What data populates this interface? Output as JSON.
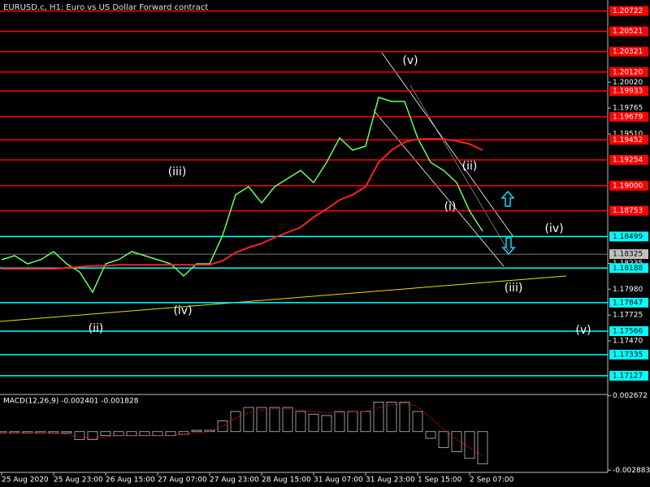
{
  "header": {
    "title": "EURUSD.c, H1:  Euro vs US Dollar Forward contract"
  },
  "chart_data": [
    {
      "type": "line",
      "categories": [
        "25 Aug 2020",
        null,
        null,
        null,
        "25 Aug 23:00",
        null,
        null,
        null,
        "26 Aug 15:00",
        null,
        null,
        null,
        "27 Aug 07:00",
        null,
        null,
        null,
        "27 Aug 23:00",
        null,
        null,
        null,
        "28 Aug 15:00",
        null,
        null,
        null,
        "31 Aug 07:00",
        null,
        null,
        null,
        "31 Aug 23:00",
        null,
        null,
        null,
        "1 Sep 15:00",
        null,
        null,
        null,
        "2 Sep 07:00",
        null
      ],
      "series": [
        {
          "color": "#66ff66",
          "values": [
            1.1827,
            1.1831,
            1.1823,
            1.1827,
            1.1835,
            1.1823,
            1.1815,
            1.1795,
            1.1823,
            1.1827,
            1.1835,
            1.1831,
            1.1827,
            1.1823,
            1.1811,
            1.1823,
            1.1823,
            1.1851,
            1.1891,
            1.1899,
            1.1883,
            1.1899,
            1.1907,
            1.1915,
            1.1903,
            1.1923,
            1.1947,
            1.1935,
            1.1939,
            1.1987,
            1.1983,
            1.1983,
            1.1947,
            1.1923,
            1.1915,
            1.1903,
            1.1875,
            1.1855
          ]
        },
        {
          "color": "#ff2020",
          "values": [
            1.1818,
            1.1818,
            1.1818,
            1.1818,
            1.1818,
            1.1819,
            1.182,
            1.1821,
            1.1821,
            1.1822,
            1.1822,
            1.1822,
            1.1822,
            1.1822,
            1.1822,
            1.1822,
            1.1822,
            1.1826,
            1.1834,
            1.1839,
            1.1843,
            1.1849,
            1.1854,
            1.1859,
            1.1869,
            1.1877,
            1.1886,
            1.1891,
            1.1899,
            1.1923,
            1.1935,
            1.1943,
            1.1946,
            1.1946,
            1.1946,
            1.1944,
            1.1941,
            1.1935
          ]
        }
      ],
      "ylim": [
        1.1695,
        1.2083
      ],
      "yticks": [
        {
          "value": 1.2002,
          "label": "1.20020"
        },
        1.19765,
        {
          "value": 1.1951,
          "label": "1.19510"
        },
        1.18235,
        {
          "value": 1.1798,
          "label": "1.17980"
        },
        1.17725,
        {
          "value": 1.1747,
          "label": "1.17470"
        }
      ],
      "resistance_levels": {
        "color": "#ff0000",
        "values": [
          1.20722,
          1.20521,
          1.20321,
          {
            "value": 1.2012,
            "label": "1.20120"
          },
          1.19933,
          1.19679,
          1.19452,
          1.19254,
          {
            "value": 1.19,
            "label": "1.19000"
          },
          1.18753
        ]
      },
      "support_levels": {
        "color": "#00ffff",
        "values": [
          1.18499,
          1.18188,
          1.17847,
          1.17566,
          1.17335,
          1.17127
        ]
      },
      "current_price": 1.18325,
      "annotations": [
        "(v)",
        "(iii)",
        "(ii)",
        "(i)",
        "(iv)",
        "(iii)",
        "(iv)",
        "(ii)",
        "(v)"
      ]
    },
    {
      "type": "bar",
      "title": "MACD(12,26,9) -0.002401 -0.001828",
      "series": [
        {
          "color": "#c0c0c0",
          "values": [
            -0.0001,
            -0.0001,
            -0.0001,
            -0.0001,
            -0.0001,
            -0.0001,
            -0.0006,
            -0.0006,
            -0.0003,
            -0.0003,
            -0.0003,
            -0.0003,
            -0.0003,
            -0.0003,
            -0.0002,
            0.0001,
            0.0001,
            0.0008,
            0.0015,
            0.0018,
            0.0018,
            0.0018,
            0.0018,
            0.0015,
            0.0013,
            0.0012,
            0.0015,
            0.0015,
            0.0015,
            0.0022,
            0.0022,
            0.0022,
            0.0015,
            -0.0005,
            -0.0012,
            -0.0015,
            -0.002,
            -0.0024
          ]
        },
        {
          "color": "#ff0000",
          "values": [
            -0.0001,
            -0.0001,
            -0.0001,
            -0.0001,
            -0.0001,
            -0.0002,
            -0.0004,
            -0.0005,
            -0.0004,
            -0.0003,
            -0.0003,
            -0.0003,
            -0.0003,
            -0.0003,
            -0.0002,
            -0.0001,
            0,
            0.0004,
            0.001,
            0.0014,
            0.0016,
            0.0017,
            0.0017,
            0.0016,
            0.0015,
            0.0014,
            0.0014,
            0.0015,
            0.0015,
            0.0018,
            0.002,
            0.0021,
            0.0019,
            0.001,
            0.0002,
            -0.0006,
            -0.0012,
            -0.0018
          ]
        }
      ],
      "ylim": [
        -0.002924,
        0.002711
      ],
      "yticks": [
        0.002672,
        -0.002883
      ]
    }
  ]
}
